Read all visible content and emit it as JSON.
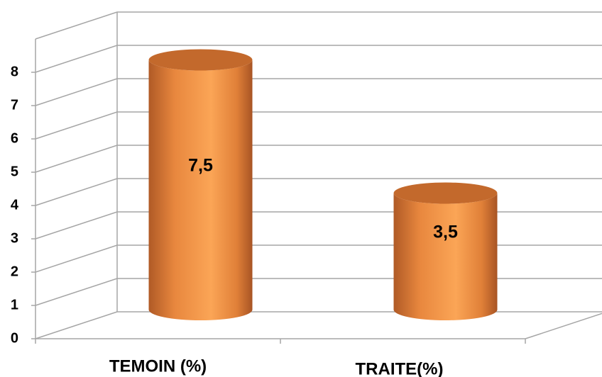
{
  "chart_data": {
    "type": "cylinder-bar",
    "categories": [
      "TEMOIN (%)",
      "TRAITE(%)"
    ],
    "values": [
      7.5,
      3.5
    ],
    "value_labels": [
      "7,5",
      "3,5"
    ],
    "color": "#f39a4c",
    "ylim": [
      0,
      9
    ],
    "yticks": [
      0,
      1,
      2,
      3,
      4,
      5,
      6,
      7,
      8
    ],
    "grid": true
  }
}
